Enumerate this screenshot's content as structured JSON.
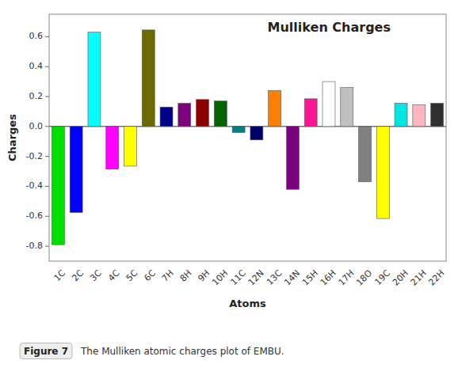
{
  "chart_data": {
    "type": "bar",
    "title": "Mulliken Charges",
    "xlabel": "Atoms",
    "ylabel": "Charges",
    "categories": [
      "1C",
      "2C",
      "3C",
      "4C",
      "5C",
      "6C",
      "7H",
      "8H",
      "9H",
      "10H",
      "11C",
      "12N",
      "13C",
      "14N",
      "15H",
      "16H",
      "17H",
      "18O",
      "19C",
      "20H",
      "21H",
      "22H"
    ],
    "values": [
      -0.79,
      -0.575,
      0.63,
      -0.285,
      -0.265,
      0.645,
      0.13,
      0.155,
      0.18,
      0.17,
      -0.04,
      -0.09,
      0.24,
      -0.42,
      0.185,
      0.3,
      0.26,
      -0.37,
      -0.615,
      0.155,
      0.145,
      0.155
    ],
    "colors": [
      "#00dd00",
      "#0000ff",
      "#00ffff",
      "#ff00ff",
      "#ffff00",
      "#6b6b00",
      "#00008b",
      "#800080",
      "#8b0000",
      "#006400",
      "#008080",
      "#00006b",
      "#ff8000",
      "#7b007b",
      "#ff1493",
      "#ffffff",
      "#c0c0c0",
      "#808080",
      "#ffff00",
      "#00e5e5",
      "#ffb6c1",
      "#303030"
    ],
    "ylim": [
      -0.9,
      0.75
    ],
    "yticks": [
      -0.8,
      -0.6,
      -0.4,
      -0.2,
      {
        "value": 0,
        "label": "0.0"
      },
      0.2,
      0.4,
      0.6
    ],
    "grid": false,
    "annotations": [
      "Figure 7",
      "The Mulliken atomic charges plot of EMBU."
    ]
  }
}
